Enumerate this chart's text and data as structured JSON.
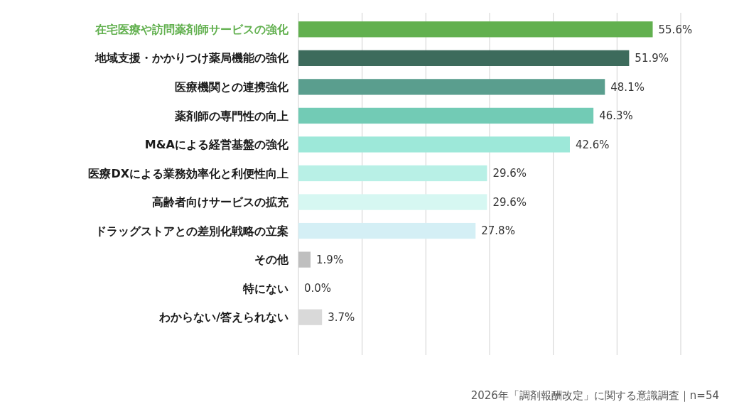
{
  "chart_data": {
    "type": "bar",
    "orientation": "horizontal",
    "categories": [
      "在宅医療や訪問薬剤師サービスの強化",
      "地域支援・かかりつけ薬局機能の強化",
      "医療機関との連携強化",
      "薬剤師の専門性の向上",
      "M&Aによる経営基盤の強化",
      "医療DXによる業務効率化と利便性向上",
      "高齢者向けサービスの拡充",
      "ドラッグストアとの差別化戦略の立案",
      "その他",
      "特にない",
      "わからない/答えられない"
    ],
    "values": [
      55.6,
      51.9,
      48.1,
      46.3,
      42.6,
      29.6,
      29.6,
      27.8,
      1.9,
      0.0,
      3.7
    ],
    "value_labels": [
      "55.6%",
      "51.9%",
      "48.1%",
      "46.3%",
      "42.6%",
      "29.6%",
      "29.6%",
      "27.8%",
      "1.9%",
      "0.0%",
      "3.7%"
    ],
    "colors": [
      "#62b04f",
      "#3d6b5c",
      "#5a9e8e",
      "#72cbb5",
      "#9de8d9",
      "#b8f0e6",
      "#d6f7f2",
      "#d4eff5",
      "#bfbfbf",
      "#d9d9d9",
      "#d9d9d9"
    ],
    "xlim": [
      0,
      60
    ],
    "xticks": [
      {
        "value": 0,
        "label": null
      },
      {
        "value": 10,
        "label": null
      },
      {
        "value": 20,
        "label": null
      },
      {
        "value": 30,
        "label": null
      },
      {
        "value": 40,
        "label": null
      },
      {
        "value": 50,
        "label": null
      },
      {
        "value": 60,
        "label": null
      }
    ],
    "grid": "x",
    "annotations": [
      "2026年「調剤報酬改定」に関する意識調査｜n=54"
    ]
  }
}
